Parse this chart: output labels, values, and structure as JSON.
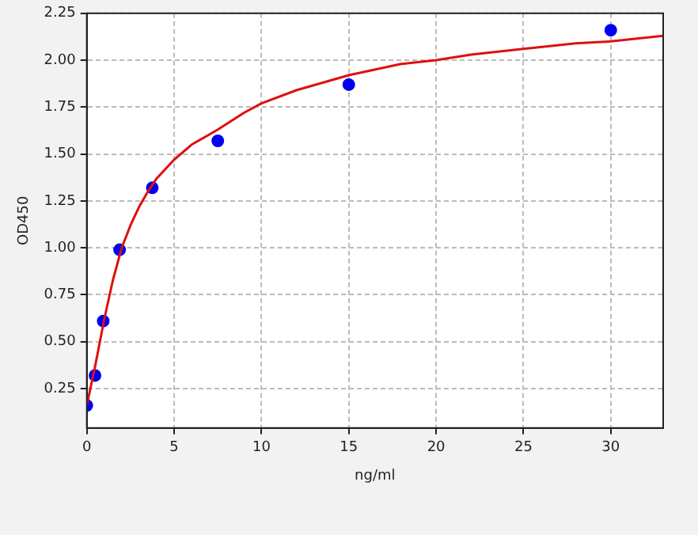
{
  "chart_data": {
    "type": "scatter",
    "xlabel": "ng/ml",
    "ylabel": "OD450",
    "xlim": [
      0,
      33
    ],
    "ylim": [
      0.04,
      2.25
    ],
    "xticks": [
      0,
      5,
      10,
      15,
      20,
      25,
      30
    ],
    "yticks": [
      0.25,
      {
        "value": 0.5,
        "label": "0.50"
      },
      0.75,
      {
        "value": 1,
        "label": "1.00"
      },
      1.25,
      {
        "value": 1.5,
        "label": "1.50"
      },
      1.75,
      {
        "value": 2,
        "label": "2.00"
      },
      2.25
    ],
    "grid": true,
    "series": [
      {
        "type": "line",
        "color": "#dd1010",
        "marker": "none",
        "line_style": "solid",
        "x": [
          0,
          0.25,
          0.5,
          0.75,
          1,
          1.5,
          2,
          2.5,
          3,
          3.5,
          4,
          5,
          6,
          7.5,
          9,
          10,
          12,
          15,
          18,
          20,
          22,
          25,
          28,
          30,
          33
        ],
        "values": [
          0.16,
          0.27,
          0.38,
          0.5,
          0.62,
          0.83,
          1.0,
          1.12,
          1.22,
          1.3,
          1.37,
          1.47,
          1.55,
          1.63,
          1.72,
          1.77,
          1.84,
          1.92,
          1.98,
          2.0,
          2.03,
          2.06,
          2.09,
          2.1,
          2.13
        ]
      },
      {
        "color": "#0000ee",
        "marker": "circle",
        "x": [
          0,
          0.47,
          0.94,
          1.88,
          3.75,
          7.5,
          15,
          30
        ],
        "values": [
          0.16,
          0.32,
          0.61,
          0.99,
          1.32,
          1.57,
          1.87,
          2.16
        ]
      }
    ]
  }
}
